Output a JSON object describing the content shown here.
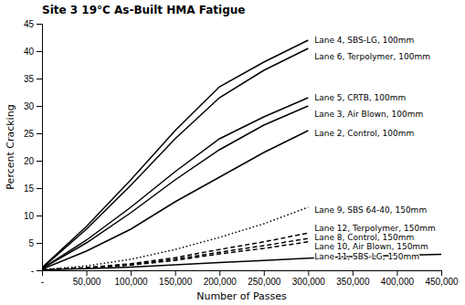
{
  "chart_data": {
    "type": "line",
    "title": "Site 3 19°C As-Built HMA Fatigue",
    "x_label": "Number of Passes",
    "y_label": "Percent Cracking",
    "xlim": [
      0,
      450000
    ],
    "ylim": [
      0,
      45
    ],
    "xticks": [
      {
        "value": 0,
        "label": "-"
      },
      {
        "value": 50000,
        "label": "50,000"
      },
      {
        "value": 100000,
        "label": "100,000"
      },
      {
        "value": 150000,
        "label": "150,000"
      },
      {
        "value": 200000,
        "label": "200,000"
      },
      {
        "value": 250000,
        "label": "250,000"
      },
      {
        "value": 300000,
        "label": "300,000"
      },
      {
        "value": 350000,
        "label": "350,000"
      },
      {
        "value": 400000,
        "label": "400,000"
      },
      {
        "value": 450000,
        "label": "450,000"
      }
    ],
    "yticks": [
      {
        "value": 0,
        "label": "-"
      },
      5,
      10,
      15,
      20,
      25,
      30,
      35,
      40,
      45
    ],
    "grid": false,
    "series": [
      {
        "x": [
          0,
          50000,
          100000,
          150000,
          200000,
          250000,
          300000
        ],
        "values": [
          0.5,
          8.0,
          16.5,
          25.5,
          33.5,
          38.0,
          42.0
        ],
        "color": "#000000",
        "line_style": "solid"
      },
      {
        "x": [
          0,
          50000,
          100000,
          150000,
          200000,
          250000,
          300000
        ],
        "values": [
          0.4,
          7.5,
          15.5,
          24.0,
          31.5,
          36.5,
          40.5
        ],
        "color": "#000000",
        "line_style": "solid"
      },
      {
        "x": [
          0,
          50000,
          100000,
          150000,
          200000,
          250000,
          300000
        ],
        "values": [
          0.3,
          5.5,
          11.5,
          18.0,
          24.0,
          28.0,
          31.5
        ],
        "color": "#000000",
        "line_style": "solid"
      },
      {
        "x": [
          0,
          50000,
          100000,
          150000,
          200000,
          250000,
          300000
        ],
        "values": [
          0.3,
          5.0,
          10.5,
          16.5,
          22.0,
          26.5,
          30.0
        ],
        "color": "#000000",
        "line_style": "solid"
      },
      {
        "x": [
          0,
          50000,
          100000,
          150000,
          200000,
          250000,
          300000
        ],
        "values": [
          0.2,
          3.5,
          7.5,
          12.5,
          17.0,
          21.5,
          25.5
        ],
        "color": "#000000",
        "line_style": "solid"
      },
      {
        "x": [
          0,
          50000,
          100000,
          150000,
          200000,
          250000,
          300000
        ],
        "values": [
          0.1,
          0.8,
          2.0,
          3.8,
          6.0,
          8.5,
          11.5
        ],
        "color": "#000000",
        "line_style": "dotted"
      },
      {
        "x": [
          0,
          50000,
          100000,
          150000,
          200000,
          250000,
          300000
        ],
        "values": [
          0.1,
          0.5,
          1.2,
          2.3,
          3.8,
          5.2,
          6.8
        ],
        "color": "#000000",
        "line_style": "dashed"
      },
      {
        "x": [
          0,
          50000,
          100000,
          150000,
          200000,
          250000,
          300000
        ],
        "values": [
          0.1,
          0.45,
          1.05,
          2.0,
          3.3,
          4.5,
          5.8
        ],
        "color": "#000000",
        "line_style": "dashed"
      },
      {
        "x": [
          0,
          50000,
          100000,
          150000,
          200000,
          250000,
          300000
        ],
        "values": [
          0.1,
          0.4,
          0.95,
          1.8,
          3.0,
          4.0,
          5.2
        ],
        "color": "#000000",
        "line_style": "dashed"
      },
      {
        "x": [
          0,
          50000,
          100000,
          150000,
          200000,
          250000,
          300000,
          350000,
          400000,
          450000
        ],
        "values": [
          0.1,
          0.3,
          0.6,
          1.0,
          1.4,
          1.8,
          2.2,
          2.5,
          2.7,
          2.9
        ],
        "color": "#000000",
        "line_style": "solid"
      }
    ],
    "annotations": [
      {
        "text": "Lane 4, SBS-LG, 100mm",
        "x": 305000,
        "y": 42.0
      },
      {
        "text": "Lane 6, Terpolymer, 100mm",
        "x": 305000,
        "y": 39.0
      },
      {
        "text": "Lane 5, CRTB, 100mm",
        "x": 305000,
        "y": 31.5
      },
      {
        "text": "Lane 3, Air Blown, 100mm",
        "x": 305000,
        "y": 28.5
      },
      {
        "text": "Lane 2, Control, 100mm",
        "x": 305000,
        "y": 25.0
      },
      {
        "text": "Lane 9, SBS 64-40, 150mm",
        "x": 305000,
        "y": 11.0
      },
      {
        "text": "Lane 12, Terpolymer, 150mm",
        "x": 305000,
        "y": 7.2
      },
      {
        "text": "Lane 8, Control, 150mm",
        "x": 305000,
        "y": 5.5
      },
      {
        "text": "Lane 10, Air Blown, 150mm",
        "x": 305000,
        "y": 4.3
      },
      {
        "text": "Lane 11, SBS-LG, 150mm",
        "x": 305000,
        "y": 2.5
      }
    ]
  }
}
